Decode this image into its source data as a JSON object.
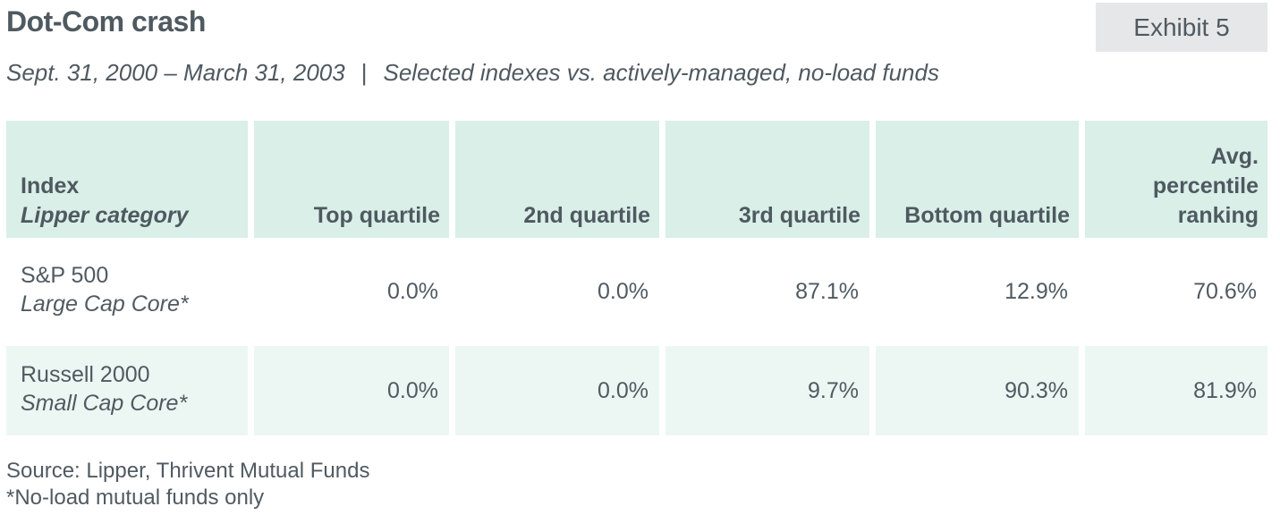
{
  "header": {
    "title": "Dot-Com crash",
    "exhibit_label": "Exhibit 5",
    "subtitle_period": "Sept. 31, 2000 – March 31, 2003",
    "subtitle_separator": "|",
    "subtitle_desc": "Selected indexes vs. actively-managed, no-load funds"
  },
  "chart_data": {
    "type": "table",
    "columns": [
      {
        "line1": "Index",
        "line2": "Lipper category"
      },
      {
        "line1": "Top quartile"
      },
      {
        "line1": "2nd quartile"
      },
      {
        "line1": "3rd quartile"
      },
      {
        "line1": "Bottom quartile"
      },
      {
        "line1": "Avg.",
        "line2": "percentile",
        "line3": "ranking"
      }
    ],
    "rows": [
      {
        "index": "S&P 500",
        "category": "Large Cap Core*",
        "values": [
          "0.0%",
          "0.0%",
          "87.1%",
          "12.9%",
          "70.6%"
        ]
      },
      {
        "index": "Russell 2000",
        "category": "Small Cap Core*",
        "values": [
          "0.0%",
          "0.0%",
          "9.7%",
          "90.3%",
          "81.9%"
        ]
      }
    ]
  },
  "footer": {
    "source": "Source: Lipper, Thrivent Mutual Funds",
    "footnote": "*No-load mutual funds only"
  },
  "colors": {
    "header_fill": "#d9efe8",
    "shaded_row_fill": "#ecf7f3",
    "exhibit_fill": "#e6e7e8",
    "text": "#4f5960"
  }
}
